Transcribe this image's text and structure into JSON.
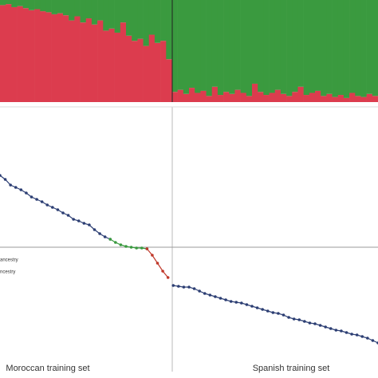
{
  "chart_data": [
    {
      "type": "stacked_bar",
      "ylim": [
        0,
        100
      ],
      "series": [
        {
          "color": "#dc3c4e",
          "values": [
            95,
            96,
            93,
            94,
            92,
            90,
            91,
            89,
            88,
            86,
            87,
            85,
            80,
            84,
            78,
            82,
            76,
            80,
            70,
            72,
            68,
            78,
            65,
            60,
            62,
            55,
            66,
            58,
            60,
            42,
            10,
            12,
            8,
            14,
            9,
            11,
            6,
            15,
            7,
            10,
            8,
            12,
            9,
            6,
            18,
            10,
            7,
            9,
            12,
            8,
            6,
            10,
            15,
            7,
            9,
            11,
            6,
            8,
            5,
            7,
            4,
            9,
            6,
            5,
            8,
            6
          ]
        },
        {
          "color": "#3a9a3f",
          "values": [
            5,
            4,
            7,
            6,
            8,
            10,
            9,
            11,
            12,
            14,
            13,
            15,
            20,
            16,
            22,
            18,
            24,
            20,
            30,
            28,
            32,
            22,
            35,
            40,
            38,
            45,
            34,
            42,
            40,
            58,
            90,
            88,
            92,
            86,
            91,
            89,
            94,
            85,
            93,
            90,
            92,
            88,
            91,
            94,
            82,
            90,
            93,
            91,
            88,
            92,
            94,
            90,
            85,
            93,
            91,
            89,
            94,
            92,
            95,
            93,
            96,
            91,
            94,
            95,
            92,
            94
          ]
        }
      ]
    },
    {
      "type": "line",
      "xlim": [
        0,
        72
      ],
      "ylim": [
        -1.5,
        1.7
      ],
      "series": [
        {
          "color": "#2c3e73",
          "x": [
            0,
            1,
            2,
            3,
            4,
            5,
            6,
            7,
            8,
            9,
            10,
            11,
            12,
            13,
            14,
            15,
            16,
            17,
            18,
            19,
            20,
            21
          ],
          "values": [
            0.9,
            0.85,
            0.78,
            0.75,
            0.72,
            0.68,
            0.63,
            0.6,
            0.57,
            0.53,
            0.5,
            0.47,
            0.43,
            0.4,
            0.35,
            0.33,
            0.3,
            0.28,
            0.22,
            0.17,
            0.13,
            0.1
          ]
        },
        {
          "color": "#3a9a3f",
          "x": [
            21,
            22,
            23,
            24,
            25,
            26,
            27,
            28
          ],
          "values": [
            0.1,
            0.06,
            0.03,
            0.01,
            0.0,
            -0.01,
            -0.01,
            -0.02
          ]
        },
        {
          "color": "#c0392b",
          "x": [
            28,
            29,
            30,
            31,
            32
          ],
          "values": [
            -0.02,
            -0.1,
            -0.2,
            -0.3,
            -0.38
          ]
        },
        {
          "color": "#2c3e73",
          "x": [
            33,
            34,
            35,
            36,
            37,
            38,
            39,
            40,
            41,
            42,
            43,
            44,
            45,
            46,
            47,
            48,
            49,
            50,
            51,
            52,
            53,
            54,
            55,
            56,
            57,
            58,
            59,
            60,
            61,
            62,
            63,
            64,
            65,
            66,
            67,
            68,
            69,
            70,
            71,
            72
          ],
          "values": [
            -0.48,
            -0.49,
            -0.5,
            -0.5,
            -0.52,
            -0.55,
            -0.58,
            -0.6,
            -0.62,
            -0.64,
            -0.66,
            -0.68,
            -0.69,
            -0.7,
            -0.72,
            -0.74,
            -0.76,
            -0.78,
            -0.8,
            -0.82,
            -0.83,
            -0.85,
            -0.88,
            -0.9,
            -0.91,
            -0.93,
            -0.95,
            -0.96,
            -0.98,
            -1.0,
            -1.02,
            -1.04,
            -1.05,
            -1.07,
            -1.09,
            -1.1,
            -1.12,
            -1.14,
            -1.17,
            -1.2
          ]
        }
      ],
      "annotations": [
        "ancestry",
        "ncestry"
      ],
      "group_labels": [
        "Moroccan training set",
        "Spanish training set"
      ]
    }
  ]
}
